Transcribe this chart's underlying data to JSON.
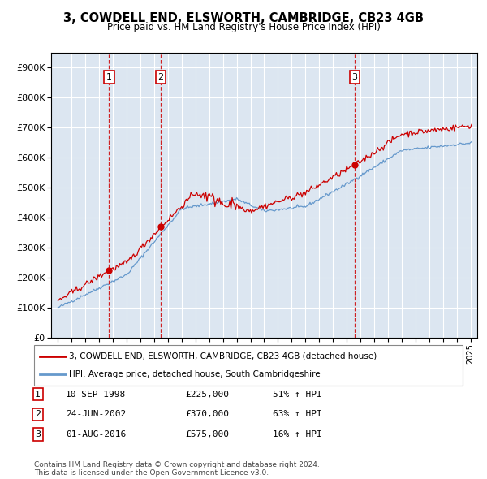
{
  "title1": "3, COWDELL END, ELSWORTH, CAMBRIDGE, CB23 4GB",
  "title2": "Price paid vs. HM Land Registry's House Price Index (HPI)",
  "background_color": "#ffffff",
  "plot_bg_color": "#dce6f1",
  "grid_color": "#ffffff",
  "red_line_color": "#cc0000",
  "blue_line_color": "#6699cc",
  "sale1_date": 1998.71,
  "sale1_price": 225000,
  "sale2_date": 2002.48,
  "sale2_price": 370000,
  "sale3_date": 2016.58,
  "sale3_price": 575000,
  "ylim_min": 0,
  "ylim_max": 950000,
  "xlim_min": 1994.5,
  "xlim_max": 2025.5,
  "legend_red": "3, COWDELL END, ELSWORTH, CAMBRIDGE, CB23 4GB (detached house)",
  "legend_blue": "HPI: Average price, detached house, South Cambridgeshire",
  "table_rows": [
    [
      "1",
      "10-SEP-1998",
      "£225,000",
      "51% ↑ HPI"
    ],
    [
      "2",
      "24-JUN-2002",
      "£370,000",
      "63% ↑ HPI"
    ],
    [
      "3",
      "01-AUG-2016",
      "£575,000",
      "16% ↑ HPI"
    ]
  ],
  "footer": "Contains HM Land Registry data © Crown copyright and database right 2024.\nThis data is licensed under the Open Government Licence v3.0."
}
